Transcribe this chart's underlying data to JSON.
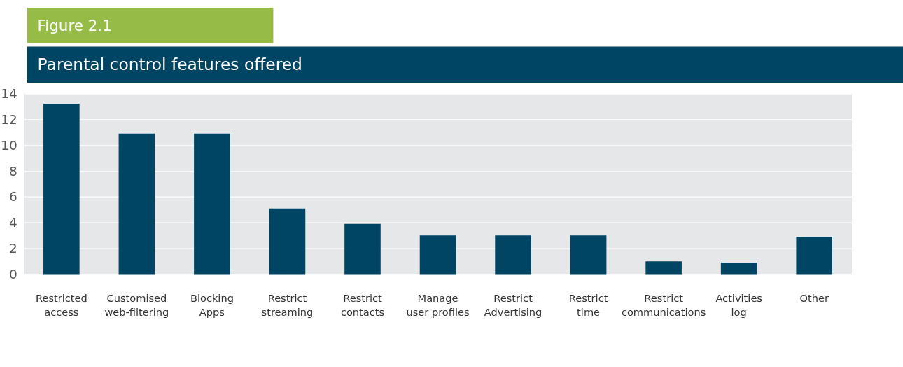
{
  "chart_data": {
    "type": "bar",
    "title": "Parental control features offered",
    "annotations": [
      "Figure 2.1"
    ],
    "categories": [
      "Restricted\naccess",
      "Customised\nweb-filtering",
      "Blocking\nApps",
      "Restrict\nstreaming",
      "Restrict\ncontacts",
      "Manage\nuser profiles",
      "Restrict\nAdvertising",
      "Restrict\ntime",
      "Restrict\ncommunications",
      "Activities\nlog",
      "Other"
    ],
    "values": [
      13.2,
      10.9,
      10.9,
      5.1,
      3.9,
      3.0,
      3.0,
      3.0,
      1.0,
      0.9,
      2.9
    ],
    "color": "#004563",
    "ylim": [
      0,
      14
    ],
    "yticks": [
      0,
      2,
      4,
      6,
      8,
      10,
      12,
      14
    ],
    "grid": "y"
  }
}
